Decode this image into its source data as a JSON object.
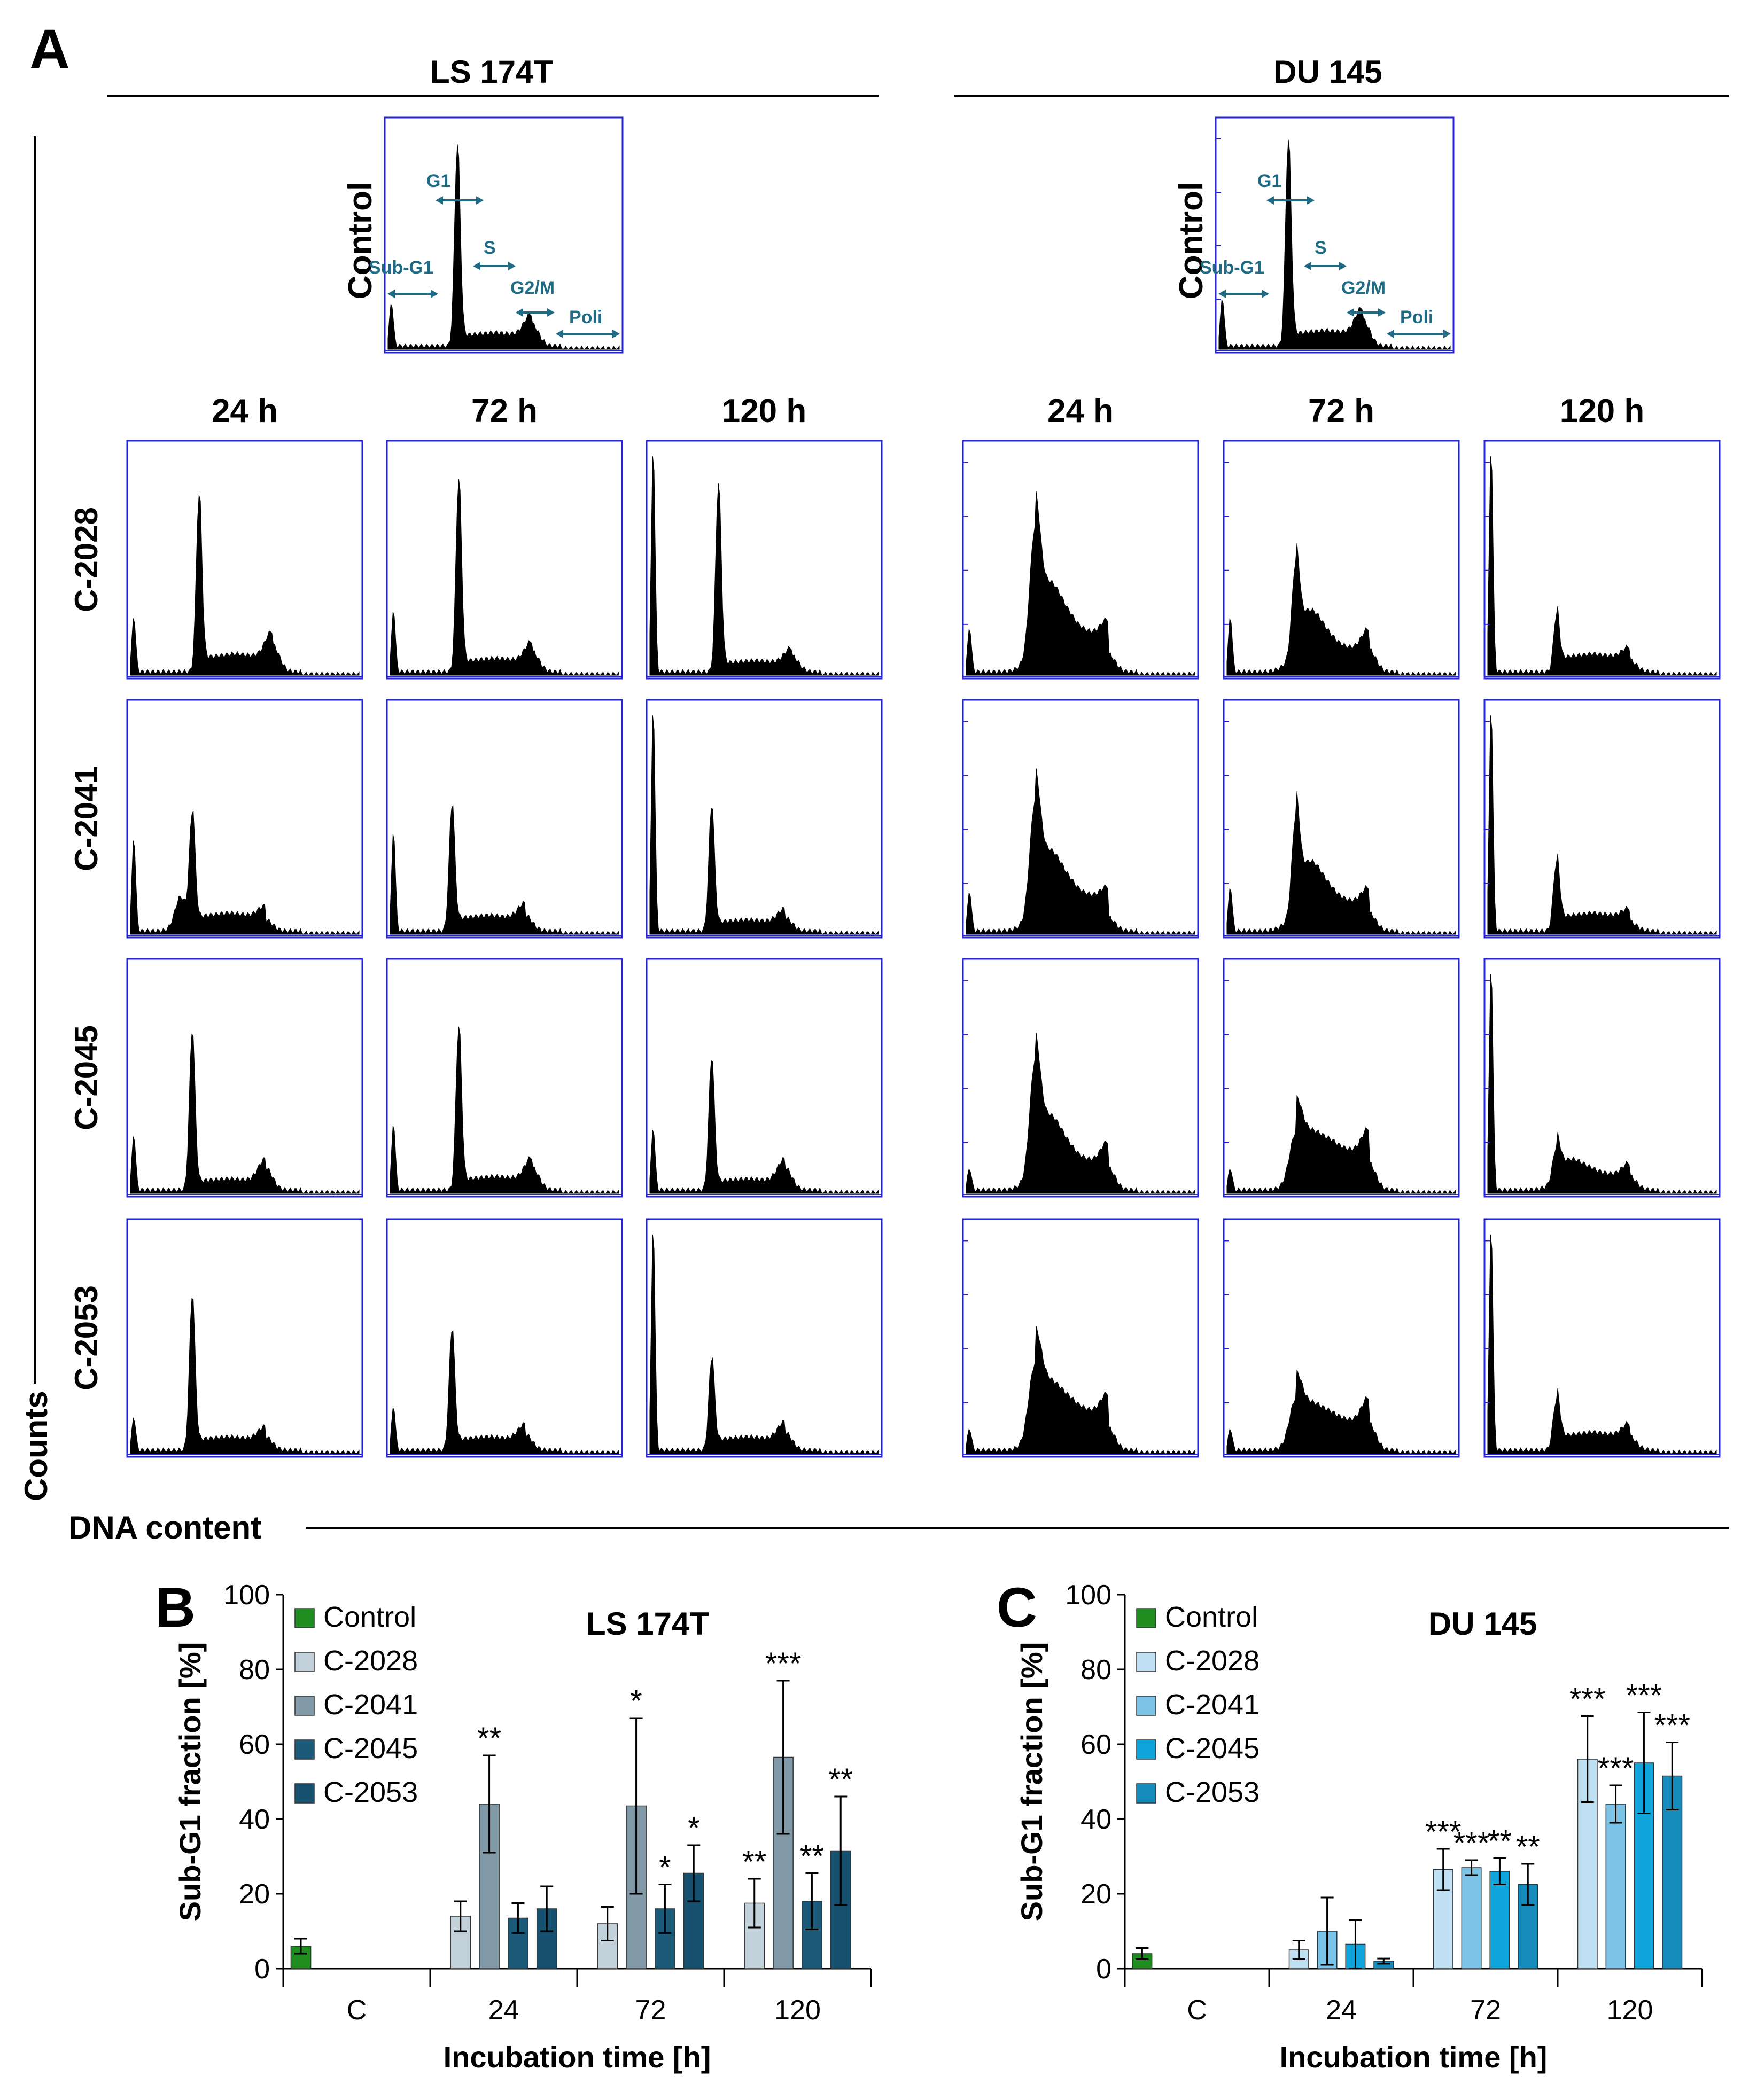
{
  "panels": {
    "a_label": "A",
    "b_label": "B",
    "c_label": "C"
  },
  "flow": {
    "cell_lines": [
      "LS 174T",
      "DU 145"
    ],
    "control_label": "Control",
    "gate_labels": [
      "Sub-G1",
      "G1",
      "S",
      "G2/M",
      "Poli"
    ],
    "times": [
      "24 h",
      "72 h",
      "120 h"
    ],
    "compounds": [
      "C-2028",
      "C-2041",
      "C-2045",
      "C-2053"
    ],
    "y_axis_label": "Counts",
    "x_axis_label": "DNA content",
    "line_color": "#2424d6",
    "gate_color": "#1f6b86"
  },
  "chart_data": [
    {
      "type": "bar",
      "id": "B",
      "title": "LS 174T",
      "xlabel": "Incubation time [h]",
      "ylabel": "Sub-G1 fraction [%]",
      "ylim": [
        0,
        100
      ],
      "yticks": [
        0,
        20,
        40,
        60,
        80,
        100
      ],
      "categories": [
        "C",
        "24",
        "72",
        "120"
      ],
      "legend_position": "top-left",
      "series": [
        {
          "name": "Control",
          "color": "#1e8c1e",
          "values": [
            6,
            null,
            null,
            null
          ],
          "errors": [
            2,
            null,
            null,
            null
          ],
          "sig": [
            "",
            "",
            "",
            ""
          ]
        },
        {
          "name": "C-2028",
          "color": "#c3d1da",
          "values": [
            null,
            14,
            12,
            17.5
          ],
          "errors": [
            null,
            4,
            4.5,
            6.5
          ],
          "sig": [
            "",
            "",
            "",
            "**"
          ]
        },
        {
          "name": "C-2041",
          "color": "#8299a7",
          "values": [
            null,
            44,
            43.5,
            56.5
          ],
          "errors": [
            null,
            13,
            23.5,
            20.5
          ],
          "sig": [
            "",
            "**",
            "*",
            "***"
          ]
        },
        {
          "name": "C-2045",
          "color": "#1b5a78",
          "values": [
            null,
            13.5,
            16,
            18
          ],
          "errors": [
            null,
            4,
            6.5,
            7.5
          ],
          "sig": [
            "",
            "",
            "*",
            "**"
          ]
        },
        {
          "name": "C-2053",
          "color": "#16516f",
          "values": [
            null,
            16,
            25.5,
            31.5
          ],
          "errors": [
            null,
            6,
            7.5,
            14.5
          ],
          "sig": [
            "",
            "",
            "*",
            "**"
          ]
        }
      ]
    },
    {
      "type": "bar",
      "id": "C",
      "title": "DU 145",
      "xlabel": "Incubation time [h]",
      "ylabel": "Sub-G1 fraction [%]",
      "ylim": [
        0,
        100
      ],
      "yticks": [
        0,
        20,
        40,
        60,
        80,
        100
      ],
      "categories": [
        "C",
        "24",
        "72",
        "120"
      ],
      "legend_position": "top-left",
      "series": [
        {
          "name": "Control",
          "color": "#1e8c1e",
          "values": [
            4,
            null,
            null,
            null
          ],
          "errors": [
            1.5,
            null,
            null,
            null
          ],
          "sig": [
            "",
            "",
            "",
            ""
          ]
        },
        {
          "name": "C-2028",
          "color": "#bfe0f2",
          "values": [
            null,
            5,
            26.5,
            56
          ],
          "errors": [
            null,
            2.5,
            5.5,
            11.5
          ],
          "sig": [
            "",
            "",
            "***",
            "***"
          ]
        },
        {
          "name": "C-2041",
          "color": "#7cc4e8",
          "values": [
            null,
            10,
            27,
            44
          ],
          "errors": [
            null,
            9,
            2,
            5
          ],
          "sig": [
            "",
            "",
            "***",
            "***"
          ]
        },
        {
          "name": "C-2045",
          "color": "#10a6dc",
          "values": [
            null,
            6.5,
            26,
            55
          ],
          "errors": [
            null,
            6.5,
            3.5,
            13.5
          ],
          "sig": [
            "",
            "",
            "**",
            "***"
          ]
        },
        {
          "name": "C-2053",
          "color": "#158cbc",
          "values": [
            null,
            2,
            22.5,
            51.5
          ],
          "errors": [
            null,
            0.7,
            5.5,
            9
          ],
          "sig": [
            "",
            "",
            "**",
            "***"
          ]
        }
      ]
    }
  ]
}
